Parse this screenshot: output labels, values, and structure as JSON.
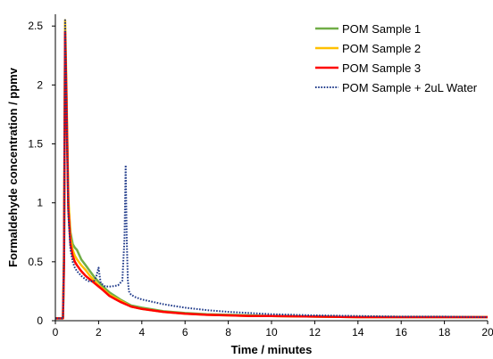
{
  "chart_data": {
    "type": "line",
    "title": "",
    "xlabel": "Time / minutes",
    "ylabel": "Formaldehyde concentration / ppmv",
    "xlim": [
      0,
      20
    ],
    "ylim": [
      0,
      2.6
    ],
    "xticks": [
      "0",
      "2",
      "4",
      "6",
      "8",
      "10",
      "12",
      "14",
      "16",
      "18",
      "20"
    ],
    "yticks": [
      "0",
      "0.5",
      "1",
      "1.5",
      "2",
      "2.5"
    ],
    "grid": false,
    "legend_position": "top-right",
    "series": [
      {
        "name": "POM Sample 1",
        "color": "#70ad47",
        "style": "solid",
        "x": [
          0,
          0.35,
          0.4,
          0.45,
          0.5,
          0.6,
          0.7,
          0.8,
          0.9,
          1.0,
          1.2,
          1.4,
          1.6,
          1.8,
          2.0,
          2.2,
          2.5,
          3.0,
          3.5,
          4.0,
          5.0,
          6.0,
          7.0,
          8.0,
          9.0,
          10.0,
          12.0,
          14.0,
          16.0,
          18.0,
          20.0
        ],
        "y": [
          0.02,
          0.02,
          0.5,
          2.4,
          2.0,
          1.0,
          0.75,
          0.65,
          0.62,
          0.6,
          0.52,
          0.47,
          0.42,
          0.37,
          0.33,
          0.29,
          0.24,
          0.18,
          0.13,
          0.11,
          0.08,
          0.065,
          0.055,
          0.05,
          0.045,
          0.04,
          0.035,
          0.03,
          0.03,
          0.03,
          0.03
        ]
      },
      {
        "name": "POM Sample 2",
        "color": "#ffc000",
        "style": "solid",
        "x": [
          0,
          0.35,
          0.4,
          0.45,
          0.5,
          0.6,
          0.7,
          0.8,
          0.9,
          1.0,
          1.2,
          1.4,
          1.6,
          1.8,
          2.0,
          2.2,
          2.5,
          3.0,
          3.5,
          4.0,
          5.0,
          6.0,
          7.0,
          8.0,
          9.0,
          10.0,
          12.0,
          14.0,
          16.0,
          18.0,
          20.0
        ],
        "y": [
          0.02,
          0.02,
          0.6,
          2.55,
          2.1,
          1.05,
          0.7,
          0.6,
          0.55,
          0.52,
          0.47,
          0.43,
          0.38,
          0.34,
          0.3,
          0.27,
          0.22,
          0.17,
          0.12,
          0.1,
          0.075,
          0.06,
          0.05,
          0.045,
          0.04,
          0.04,
          0.035,
          0.03,
          0.03,
          0.03,
          0.03
        ]
      },
      {
        "name": "POM Sample 3",
        "color": "#ff0000",
        "style": "solid",
        "x": [
          0,
          0.35,
          0.4,
          0.45,
          0.5,
          0.6,
          0.7,
          0.8,
          0.9,
          1.0,
          1.2,
          1.4,
          1.6,
          1.8,
          2.0,
          2.2,
          2.5,
          3.0,
          3.5,
          4.0,
          5.0,
          6.0,
          7.0,
          8.0,
          9.0,
          10.0,
          12.0,
          14.0,
          16.0,
          18.0,
          20.0
        ],
        "y": [
          0.02,
          0.02,
          0.5,
          2.45,
          2.0,
          0.95,
          0.65,
          0.55,
          0.5,
          0.47,
          0.42,
          0.38,
          0.35,
          0.32,
          0.29,
          0.26,
          0.21,
          0.16,
          0.12,
          0.1,
          0.075,
          0.06,
          0.05,
          0.045,
          0.04,
          0.04,
          0.035,
          0.03,
          0.03,
          0.03,
          0.03
        ]
      },
      {
        "name": "POM Sample + 2uL Water",
        "color": "#1f3a8a",
        "style": "dotted",
        "x": [
          0,
          0.35,
          0.4,
          0.45,
          0.5,
          0.6,
          0.7,
          0.8,
          0.9,
          1.0,
          1.2,
          1.4,
          1.6,
          1.8,
          1.9,
          2.0,
          2.05,
          2.1,
          2.3,
          2.6,
          2.9,
          3.1,
          3.2,
          3.25,
          3.3,
          3.35,
          3.4,
          3.5,
          3.7,
          4.0,
          5.0,
          6.0,
          7.0,
          8.0,
          9.0,
          10.0,
          12.0,
          14.0,
          16.0,
          18.0,
          20.0
        ],
        "y": [
          0.02,
          0.02,
          0.6,
          2.55,
          2.0,
          0.9,
          0.6,
          0.5,
          0.45,
          0.42,
          0.38,
          0.35,
          0.33,
          0.34,
          0.38,
          0.45,
          0.38,
          0.32,
          0.29,
          0.29,
          0.3,
          0.34,
          0.7,
          1.32,
          0.7,
          0.35,
          0.25,
          0.22,
          0.2,
          0.18,
          0.14,
          0.11,
          0.09,
          0.075,
          0.065,
          0.055,
          0.045,
          0.04,
          0.035,
          0.035,
          0.03
        ]
      }
    ]
  }
}
